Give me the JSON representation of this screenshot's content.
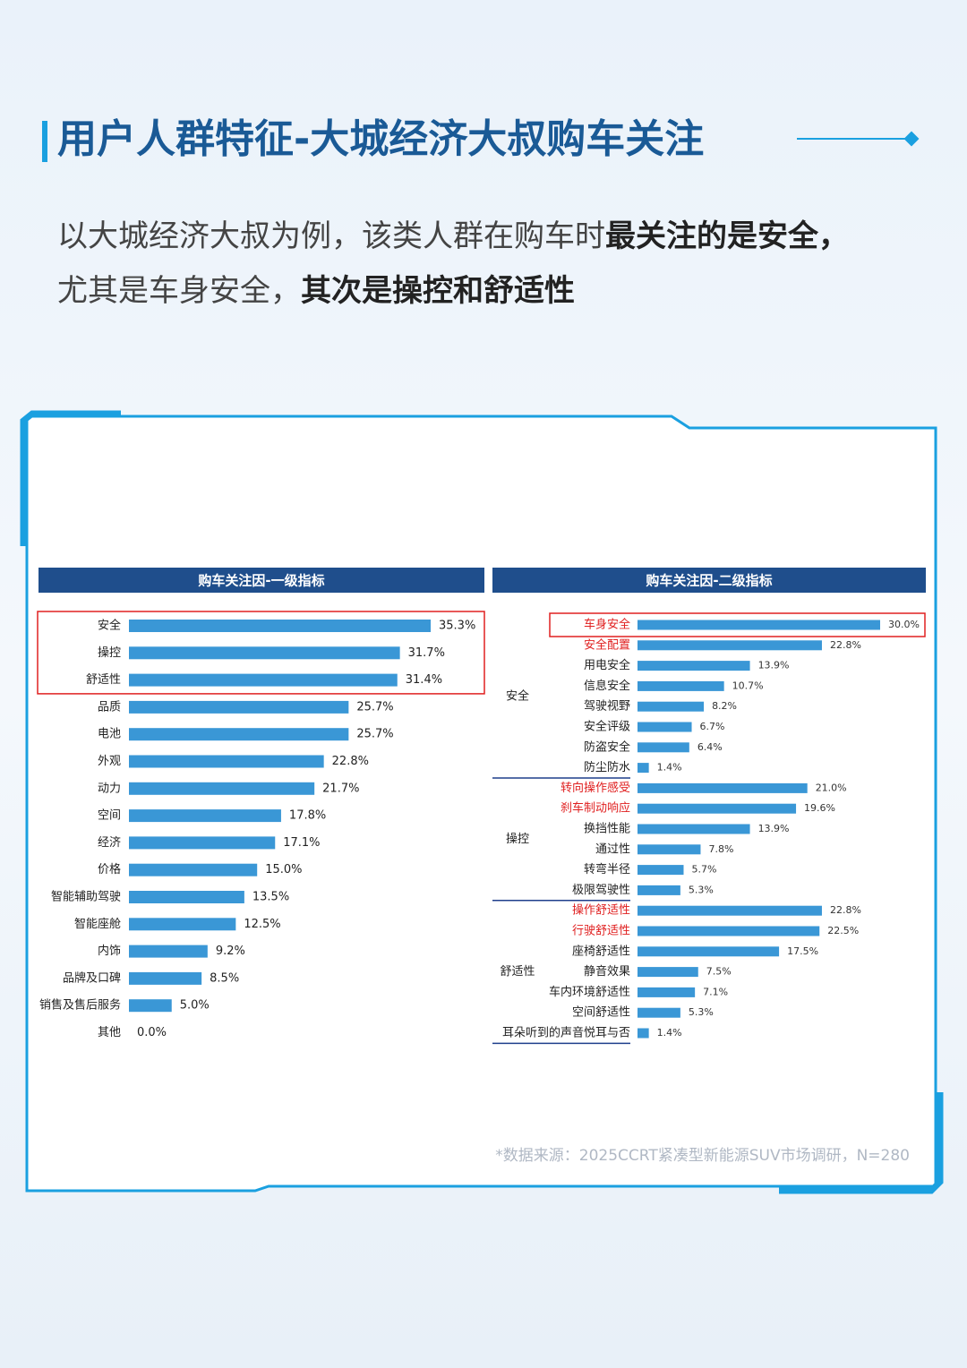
{
  "header": {
    "title": "用户人群特征-大城经济大叔购车关注",
    "lines": [
      [
        {
          "text": "以大城经济大叔为例，该类人群在购车时",
          "bold": false
        },
        {
          "text": "最关注的是安全，",
          "bold": true
        }
      ],
      [
        {
          "text": "尤其是车身安全，",
          "bold": false
        },
        {
          "text": "其次是操控和舒适性",
          "bold": true
        }
      ]
    ]
  },
  "footnote": "*数据来源：2025CCRT紧凑型新能源SUV市场调研，N=280",
  "chart_data": [
    {
      "type": "bar",
      "title": "购车关注因-一级指标",
      "color": "#3a97d6",
      "categories": [
        "安全",
        "操控",
        "舒适性",
        "品质",
        "电池",
        "外观",
        "动力",
        "空间",
        "经济",
        "价格",
        "智能辅助驾驶",
        "智能座舱",
        "内饰",
        "品牌及口碑",
        "销售及售后服务",
        "其他"
      ],
      "values": [
        35.3,
        31.7,
        31.4,
        25.7,
        25.7,
        22.8,
        21.7,
        17.8,
        17.1,
        15.0,
        13.5,
        12.5,
        9.2,
        8.5,
        5.0,
        0.0
      ],
      "value_labels": [
        "35.3%",
        "31.7%",
        "31.4%",
        "25.7%",
        "25.7%",
        "22.8%",
        "21.7%",
        "17.8%",
        "17.1%",
        "15.0%",
        "13.5%",
        "12.5%",
        "9.2%",
        "8.5%",
        "5.0%",
        "0.0%"
      ]
    },
    {
      "type": "grouped-bar",
      "title": "购车关注因-二级指标",
      "color": "#3a97d6",
      "groups": [
        {
          "name": "安全",
          "categories": [
            "车身安全",
            "安全配置",
            "用电安全",
            "信息安全",
            "驾驶视野",
            "安全评级",
            "防盗安全",
            "防尘防水"
          ],
          "values": [
            30.0,
            22.8,
            13.9,
            10.7,
            8.2,
            6.7,
            6.4,
            1.4
          ],
          "value_labels": [
            "30.0%",
            "22.8%",
            "13.9%",
            "10.7%",
            "8.2%",
            "6.7%",
            "6.4%",
            "1.4%"
          ],
          "label_colors": [
            "#e02020",
            "#e02020",
            "#222222",
            "#222222",
            "#222222",
            "#222222",
            "#222222",
            "#222222"
          ]
        },
        {
          "name": "操控",
          "categories": [
            "转向操作感受",
            "刹车制动响应",
            "换挡性能",
            "通过性",
            "转弯半径",
            "极限驾驶性"
          ],
          "values": [
            21.0,
            19.6,
            13.9,
            7.8,
            5.7,
            5.3
          ],
          "value_labels": [
            "21.0%",
            "19.6%",
            "13.9%",
            "7.8%",
            "5.7%",
            "5.3%"
          ],
          "label_colors": [
            "#e02020",
            "#e02020",
            "#222222",
            "#222222",
            "#222222",
            "#222222"
          ]
        },
        {
          "name": "舒适性",
          "categories": [
            "操作舒适性",
            "行驶舒适性",
            "座椅舒适性",
            "静音效果",
            "车内环境舒适性",
            "空间舒适性",
            "耳朵听到的声音悦耳与否"
          ],
          "values": [
            22.8,
            22.5,
            17.5,
            7.5,
            7.1,
            5.3,
            1.4
          ],
          "value_labels": [
            "22.8%",
            "22.5%",
            "17.5%",
            "7.5%",
            "7.1%",
            "5.3%",
            "1.4%"
          ],
          "label_colors": [
            "#e02020",
            "#e02020",
            "#222222",
            "#222222",
            "#222222",
            "#222222",
            "#222222"
          ]
        }
      ]
    }
  ]
}
